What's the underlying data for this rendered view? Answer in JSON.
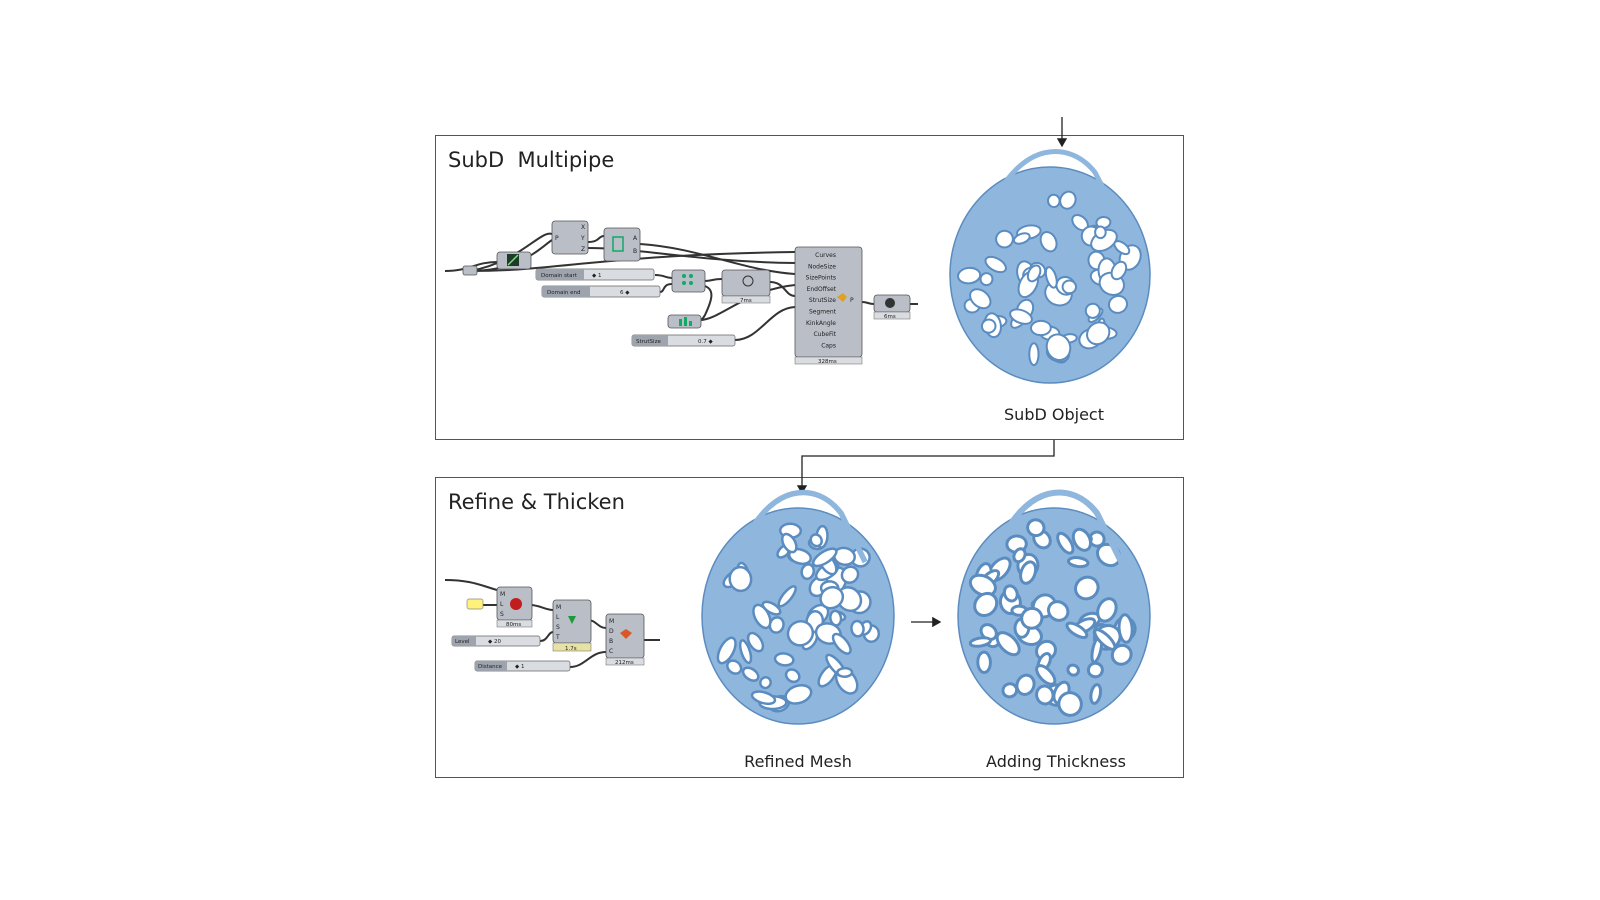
{
  "panels": {
    "top": {
      "title": "SubD  Multipipe",
      "caption": "SubD Object"
    },
    "bottom": {
      "title": "Refine & Thicken",
      "caption_left": "Refined Mesh",
      "caption_right": "Adding Thickness"
    }
  },
  "grasshopper_top": {
    "sliders": [
      {
        "label": "Domain start",
        "value": "◆ 1"
      },
      {
        "label": "Domain end",
        "value": "6 ◆"
      },
      {
        "label": "StrutSize",
        "value": "0.7 ◆"
      }
    ],
    "multipipe_inputs": [
      "Curves",
      "NodeSize",
      "SizePoints",
      "EndOffset",
      "StrutSize",
      "Segment",
      "KinkAngle",
      "CubeFit",
      "Caps"
    ],
    "timings": [
      "7ms",
      "328ms",
      "6ms"
    ]
  },
  "grasshopper_bottom": {
    "sliders": [
      {
        "label": "Level",
        "value": "◆ 20"
      },
      {
        "label": "Distance",
        "value": "◆ 1"
      }
    ],
    "timings": [
      "80ms",
      "1.7s",
      "212ms"
    ]
  },
  "colors": {
    "mesh_fill": "#8fb6dd",
    "mesh_stroke": "#5b8cc0",
    "component": "#b9bec7",
    "border": "#555555"
  },
  "icons": [
    "arrow-down-icon",
    "arrow-right-icon",
    "connector-arrow-icon"
  ]
}
